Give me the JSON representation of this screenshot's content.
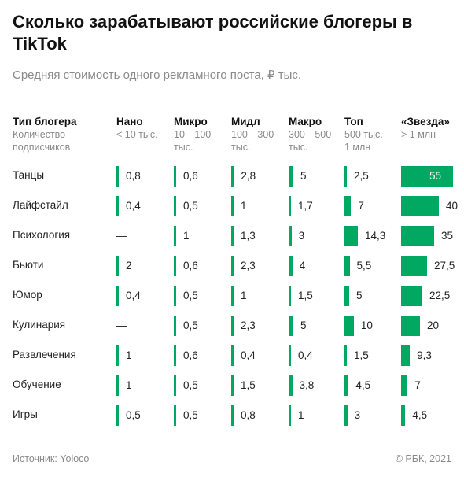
{
  "title": "Сколько зарабатывают российские блогеры в TikTok",
  "subtitle": "Средняя стоимость одного рекламного поста, ₽ тыс.",
  "source": "Источник:  Yoloco",
  "copyright": "© РБК, 2021",
  "colors": {
    "bar": "#00a862",
    "text": "#222222",
    "muted": "#8a8a8a"
  },
  "chart_data": {
    "type": "table",
    "header": {
      "label": "Тип блогера",
      "sublabel": "Количество\nподписчиков"
    },
    "columns": [
      {
        "name": "Нано",
        "sub": "< 10 тыс."
      },
      {
        "name": "Микро",
        "sub": "10—100\nтыс."
      },
      {
        "name": "Мидл",
        "sub": "100—300\nтыс."
      },
      {
        "name": "Макро",
        "sub": "300—500\nтыс."
      },
      {
        "name": "Топ",
        "sub": "500 тыс.—\n1 млн"
      },
      {
        "name": "«Звезда»",
        "sub": "> 1 млн"
      }
    ],
    "rows": [
      {
        "label": "Танцы",
        "cells": [
          "0,8",
          "0,6",
          "2,8",
          "5",
          "2,5",
          "55"
        ],
        "values": [
          0.8,
          0.6,
          2.8,
          5,
          2.5,
          55
        ]
      },
      {
        "label": "Лайфстайл",
        "cells": [
          "0,4",
          "0,5",
          "1",
          "1,7",
          "7",
          "40"
        ],
        "values": [
          0.4,
          0.5,
          1,
          1.7,
          7,
          40
        ]
      },
      {
        "label": "Психология",
        "cells": [
          "—",
          "1",
          "1,3",
          "3",
          "14,3",
          "35"
        ],
        "values": [
          null,
          1,
          1.3,
          3,
          14.3,
          35
        ]
      },
      {
        "label": "Бьюти",
        "cells": [
          "2",
          "0,6",
          "2,3",
          "4",
          "5,5",
          "27,5"
        ],
        "values": [
          2,
          0.6,
          2.3,
          4,
          5.5,
          27.5
        ]
      },
      {
        "label": "Юмор",
        "cells": [
          "0,4",
          "0,5",
          "1",
          "1,5",
          "5",
          "22,5"
        ],
        "values": [
          0.4,
          0.5,
          1,
          1.5,
          5,
          22.5
        ]
      },
      {
        "label": "Кулинария",
        "cells": [
          "—",
          "0,5",
          "2,3",
          "5",
          "10",
          "20"
        ],
        "values": [
          null,
          0.5,
          2.3,
          5,
          10,
          20
        ]
      },
      {
        "label": "Развлечения",
        "cells": [
          "1",
          "0,6",
          "0,4",
          "0,4",
          "1,5",
          "9,3"
        ],
        "values": [
          1,
          0.6,
          0.4,
          0.4,
          1.5,
          9.3
        ]
      },
      {
        "label": "Обучение",
        "cells": [
          "1",
          "0,5",
          "1,5",
          "3,8",
          "4,5",
          "7"
        ],
        "values": [
          1,
          0.5,
          1.5,
          3.8,
          4.5,
          7
        ]
      },
      {
        "label": "Игры",
        "cells": [
          "0,5",
          "0,5",
          "0,8",
          "1",
          "3",
          "4,5"
        ],
        "values": [
          0.5,
          0.5,
          0.8,
          1,
          3,
          4.5
        ]
      }
    ]
  }
}
